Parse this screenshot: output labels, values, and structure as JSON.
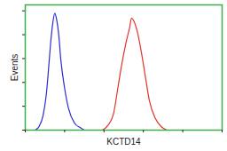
{
  "chart_data": {
    "type": "line",
    "xlabel": "KCTD14",
    "ylabel": "Events",
    "xlim": [
      0,
      100
    ],
    "ylim": [
      0,
      105
    ],
    "xticks": [
      0,
      20,
      40,
      60,
      80,
      100
    ],
    "yticks": [
      0,
      20,
      40,
      60,
      80,
      100
    ],
    "tick_labels": false,
    "grid": false,
    "series": [
      {
        "color": "#2b2bd6",
        "x": [
          5,
          7,
          9,
          11,
          12,
          13,
          14,
          15,
          16,
          17,
          18,
          20,
          22,
          25,
          28,
          30
        ],
        "values": [
          0,
          3,
          12,
          35,
          55,
          75,
          90,
          98,
          92,
          80,
          60,
          35,
          18,
          6,
          2,
          0
        ]
      },
      {
        "color": "#e0352b",
        "x": [
          39,
          42,
          45,
          47,
          49,
          51,
          53,
          54,
          55,
          57,
          59,
          61,
          63,
          66,
          69,
          72
        ],
        "values": [
          0,
          4,
          15,
          35,
          55,
          72,
          86,
          94,
          92,
          82,
          65,
          45,
          25,
          10,
          3,
          0
        ]
      }
    ]
  }
}
